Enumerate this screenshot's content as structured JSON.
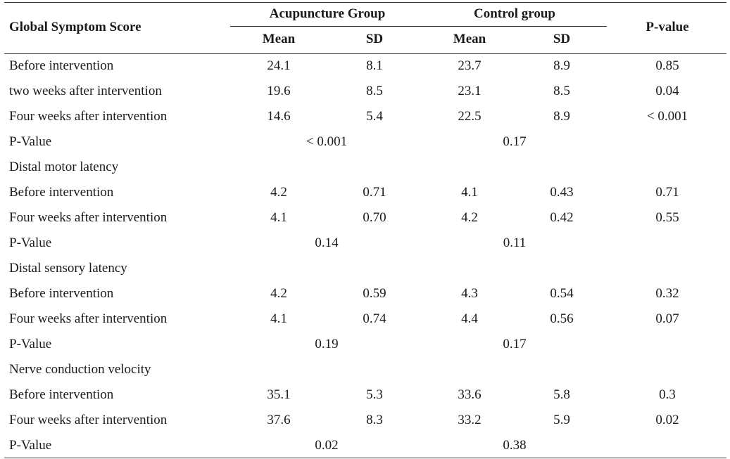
{
  "header": {
    "row_label": "Global Symptom Score",
    "group_a": "Acupuncture Group",
    "group_b": "Control group",
    "mean": "Mean",
    "sd": "SD",
    "pvalue": "P-value"
  },
  "rows": [
    {
      "label": "Before intervention",
      "a_mean": "24.1",
      "a_sd": "8.1",
      "b_mean": "23.7",
      "b_sd": "8.9",
      "p": "0.85"
    },
    {
      "label": "two weeks after intervention",
      "a_mean": "19.6",
      "a_sd": "8.5",
      "b_mean": "23.1",
      "b_sd": "8.5",
      "p": "0.04"
    },
    {
      "label": "Four weeks after intervention",
      "a_mean": "14.6",
      "a_sd": "5.4",
      "b_mean": "22.5",
      "b_sd": "8.9",
      "p": "< 0.001"
    },
    {
      "label": "P-Value",
      "a_p": "< 0.001",
      "b_p": "0.17"
    },
    {
      "label": "Distal motor latency"
    },
    {
      "label": "Before intervention",
      "a_mean": "4.2",
      "a_sd": "0.71",
      "b_mean": "4.1",
      "b_sd": "0.43",
      "p": "0.71"
    },
    {
      "label": "Four weeks after intervention",
      "a_mean": "4.1",
      "a_sd": "0.70",
      "b_mean": "4.2",
      "b_sd": "0.42",
      "p": "0.55"
    },
    {
      "label": "P-Value",
      "a_p": "0.14",
      "b_p": "0.11"
    },
    {
      "label": "Distal sensory latency"
    },
    {
      "label": "Before intervention",
      "a_mean": "4.2",
      "a_sd": "0.59",
      "b_mean": "4.3",
      "b_sd": "0.54",
      "p": "0.32"
    },
    {
      "label": "Four weeks after intervention",
      "a_mean": "4.1",
      "a_sd": "0.74",
      "b_mean": "4.4",
      "b_sd": "0.56",
      "p": "0.07"
    },
    {
      "label": "P-Value",
      "a_p": "0.19",
      "b_p": "0.17"
    },
    {
      "label": "Nerve conduction velocity"
    },
    {
      "label": "Before intervention",
      "a_mean": "35.1",
      "a_sd": "5.3",
      "b_mean": "33.6",
      "b_sd": "5.8",
      "p": "0.3"
    },
    {
      "label": "Four weeks after intervention",
      "a_mean": "37.6",
      "a_sd": "8.3",
      "b_mean": "33.2",
      "b_sd": "5.9",
      "p": "0.02"
    },
    {
      "label": "P-Value",
      "a_p": "0.02",
      "b_p": "0.38"
    }
  ]
}
